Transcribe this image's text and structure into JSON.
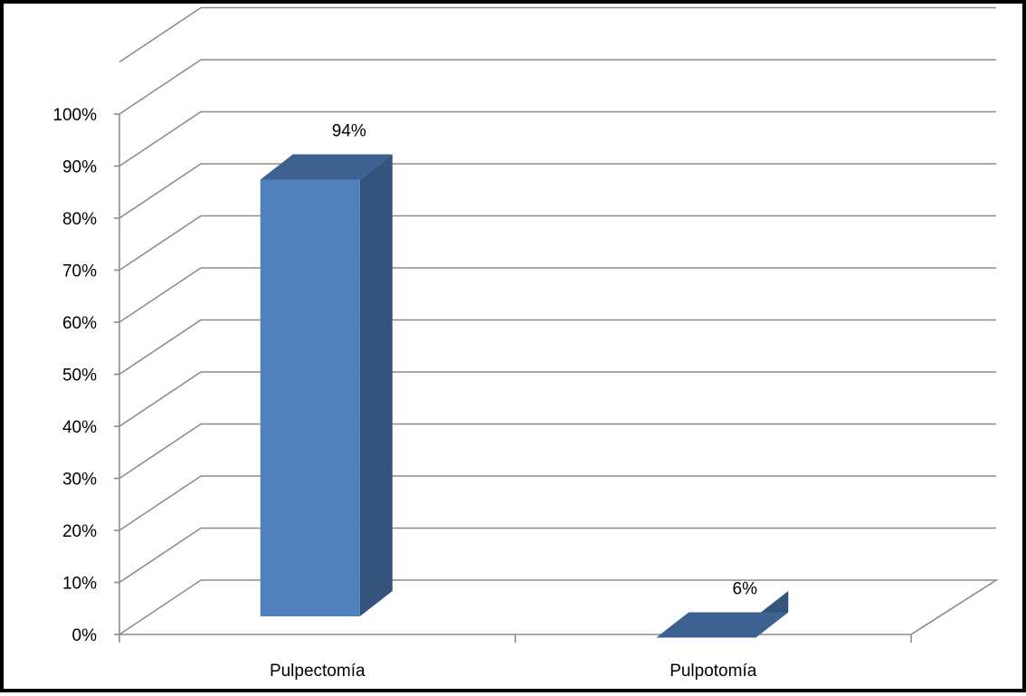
{
  "chart_data": {
    "type": "bar",
    "categories": [
      "Pulpectomía",
      "Pulpotomía"
    ],
    "values": [
      0.94,
      0.06
    ],
    "data_labels": [
      "94%",
      "6%"
    ],
    "title": "",
    "xlabel": "",
    "ylabel": "",
    "ylim": [
      0,
      1
    ],
    "y_ticks": [
      "0%",
      "10%",
      "20%",
      "30%",
      "40%",
      "50%",
      "60%",
      "70%",
      "80%",
      "90%",
      "100%"
    ],
    "grid": true,
    "legend": "none",
    "style": "3d-column",
    "colors": {
      "bar_front": "#4f81bd",
      "bar_side": "#34547c",
      "bar_top": "#3d6190",
      "grid": "#8c8c8c"
    }
  }
}
